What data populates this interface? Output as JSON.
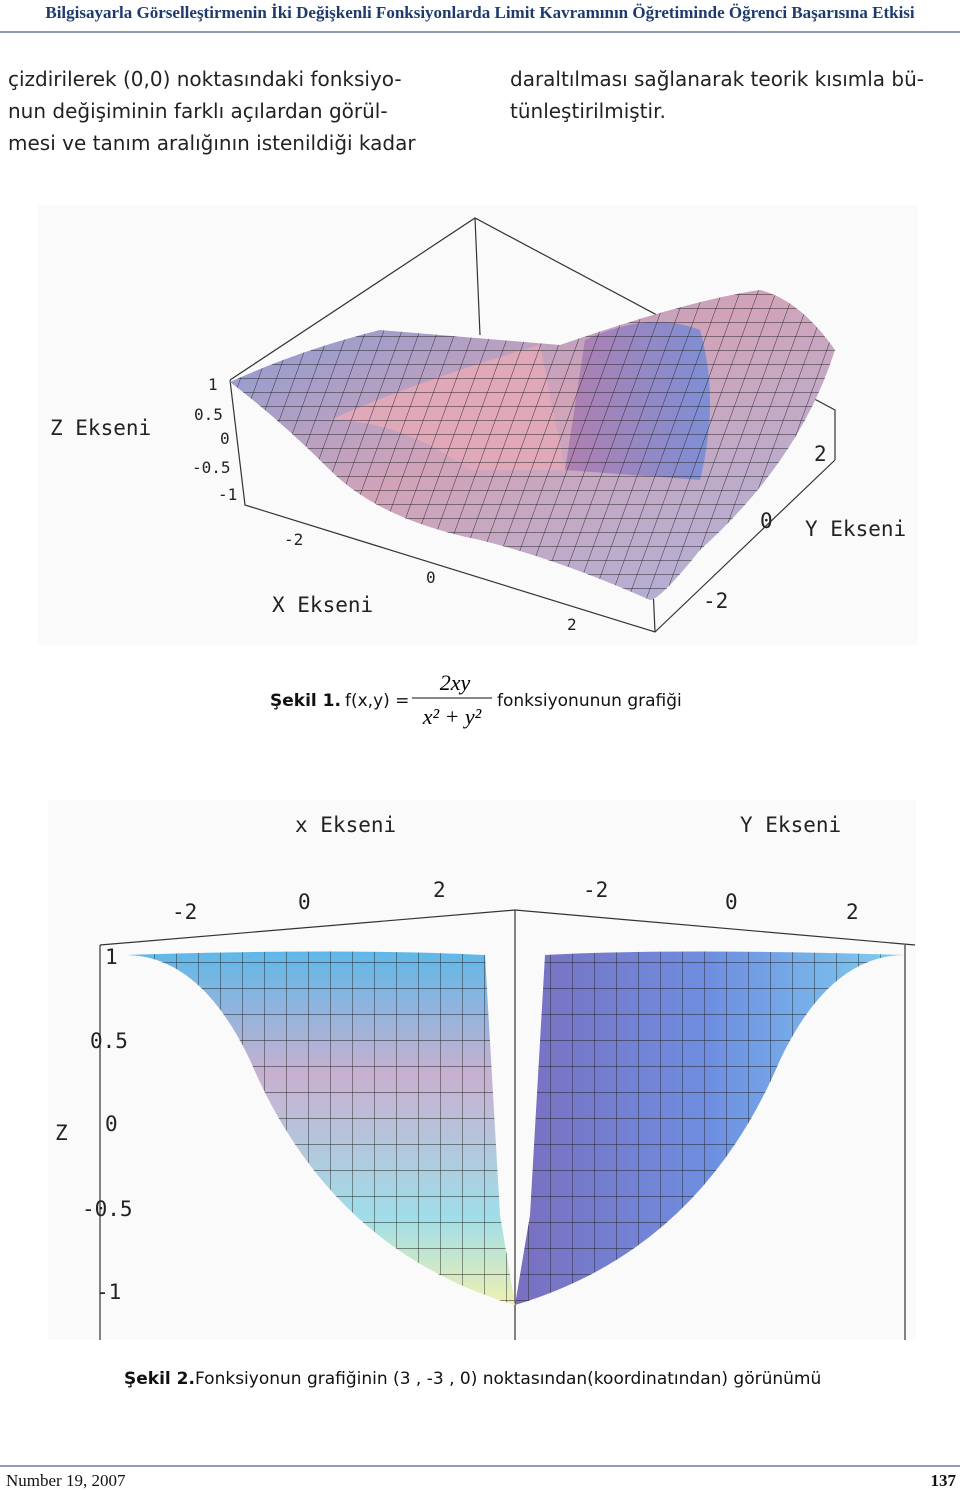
{
  "header": {
    "title": "Bilgisayarla Görselleştirmenin İki Değişkenli Fonksiyonlarda Limit Kavramının Öğretiminde Öğrenci Başarısına Etkisi"
  },
  "body": {
    "left_column": [
      "çizdirilerek (0,0) noktasındaki fonksiyo-",
      "nun değişiminin farklı açılardan görül-",
      "mesi ve tanım aralığının istenildiği kadar"
    ],
    "right_column": [
      "daraltılması sağlanarak teorik kısımla bü-",
      "tünleştirilmiştir."
    ]
  },
  "figure1": {
    "z_axis_label": "Z Ekseni",
    "z_ticks": [
      "1",
      "0.5",
      "0",
      "-0.5",
      "-1"
    ],
    "x_axis_label": "X Ekseni",
    "x_ticks": [
      "-2",
      "0",
      "2"
    ],
    "y_axis_label": "Y Ekseni",
    "y_ticks": [
      "-2",
      "0",
      "2"
    ],
    "caption": {
      "label": "Şekil 1.",
      "lhs": "f(x,y) =",
      "numerator": "2xy",
      "denominator": "x² + y²",
      "text": "fonksiyonunun grafiği"
    }
  },
  "figure2": {
    "x_axis_label": "x Ekseni",
    "x_ticks": [
      "-2",
      "0",
      "2"
    ],
    "y_axis_label": "Y Ekseni",
    "y_ticks": [
      "-2",
      "0",
      "2"
    ],
    "z_axis_label": "Z",
    "z_ticks": [
      "1",
      "0.5",
      "0",
      "-0.5",
      "-1"
    ],
    "caption": {
      "label": "Şekil 2.",
      "text": "Fonksiyonun grafiğinin (3 , -3 , 0) noktasından(koordinatından) görünümü"
    }
  },
  "footer": {
    "issue": "Number 19, 2007",
    "page": "137"
  }
}
